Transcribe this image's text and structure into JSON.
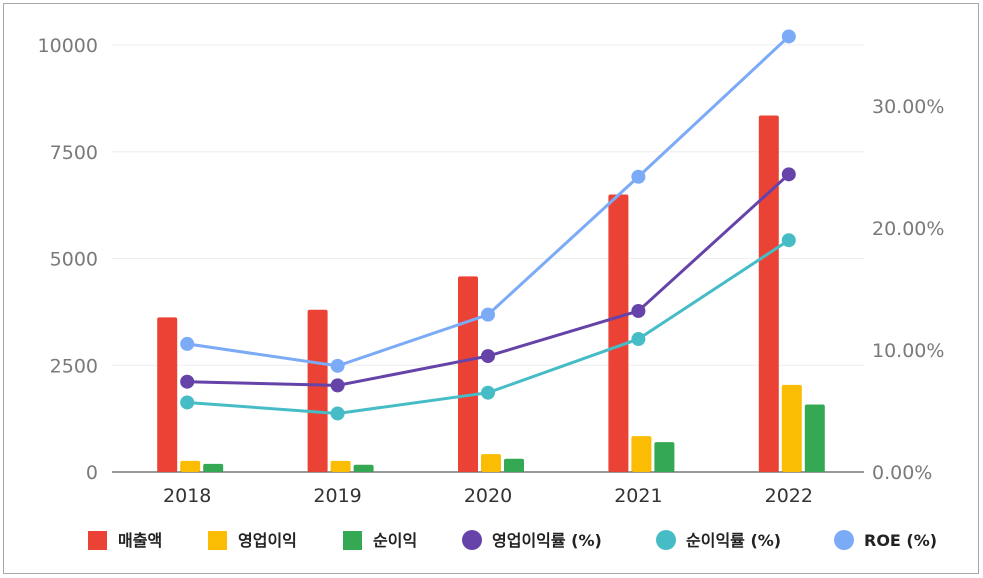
{
  "chart_data": {
    "type": "bar",
    "categories": [
      "2018",
      "2019",
      "2020",
      "2021",
      "2022"
    ],
    "y_left": {
      "ticks": [
        "0",
        "2500",
        "5000",
        "7500",
        "10000"
      ],
      "range": [
        0,
        10000
      ]
    },
    "y_right": {
      "ticks": [
        "0.00%",
        "10.00%",
        "20.00%",
        "30.00%"
      ],
      "range": [
        0,
        35
      ]
    },
    "bar_series": [
      {
        "name": "매출액",
        "color": "#ea4335",
        "values": [
          3620,
          3800,
          4580,
          6500,
          8350
        ]
      },
      {
        "name": "영업이익",
        "color": "#fbbc04",
        "values": [
          260,
          260,
          420,
          840,
          2040
        ]
      },
      {
        "name": "순이익",
        "color": "#34a853",
        "values": [
          190,
          170,
          310,
          700,
          1580
        ]
      }
    ],
    "line_series": [
      {
        "name": "영업이익률 (%)",
        "color": "#6543a8",
        "values": [
          7.4,
          7.1,
          9.5,
          13.2,
          24.4
        ]
      },
      {
        "name": "순이익률 (%)",
        "color": "#46bdc6",
        "values": [
          5.7,
          4.8,
          6.5,
          10.9,
          19.0
        ]
      },
      {
        "name": "ROE (%)",
        "color": "#7baaf7",
        "values": [
          10.5,
          8.7,
          12.9,
          24.2,
          35.7
        ]
      }
    ],
    "grid": true,
    "legend": "bottom"
  }
}
